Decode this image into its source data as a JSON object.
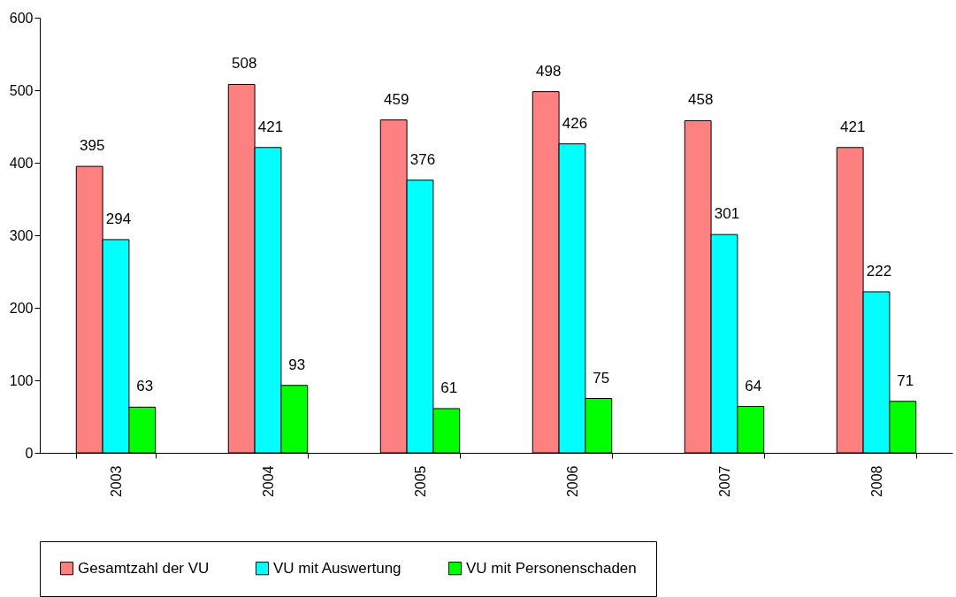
{
  "chart_data": {
    "type": "bar",
    "categories": [
      "2003",
      "2004",
      "2005",
      "2006",
      "2007",
      "2008"
    ],
    "series": [
      {
        "name": "Gesamtzahl der VU",
        "color": "#ff8080",
        "values": [
          395,
          508,
          459,
          498,
          458,
          421
        ]
      },
      {
        "name": "VU mit Auswertung",
        "color": "#00ffff",
        "values": [
          294,
          421,
          376,
          426,
          301,
          222
        ]
      },
      {
        "name": "VU mit Personenschaden",
        "color": "#00ff00",
        "values": [
          63,
          93,
          61,
          75,
          64,
          71
        ]
      }
    ],
    "ylim": [
      0,
      600
    ],
    "yticks": [
      0,
      100,
      200,
      300,
      400,
      500,
      600
    ],
    "grid": false,
    "legend": "bottom",
    "data_labels": true
  }
}
